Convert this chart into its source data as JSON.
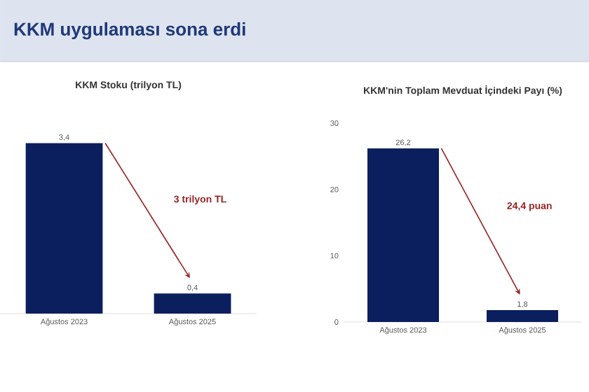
{
  "chart_data": [
    {
      "type": "bar",
      "title": "KKM Stoku (trilyon TL)",
      "categories": [
        "Ağustos 2023",
        "Ağustos 2025"
      ],
      "values": [
        3.4,
        0.4
      ],
      "value_labels": [
        "3,4",
        "0,4"
      ],
      "color": "#0b1f5e",
      "tick_labels": "x",
      "annotations": [
        "KKM uygulaması sona erdi",
        "3 trilyon TL"
      ]
    },
    {
      "type": "bar",
      "title": "KKM'nin Toplam Mevduat İçindeki Payı (%)",
      "categories": [
        "Ağustos 2023",
        "Ağustos 2025"
      ],
      "values": [
        26.2,
        1.8
      ],
      "value_labels": [
        "26,2",
        "1,8"
      ],
      "color": "#0b1f5e",
      "ylim": [
        0,
        30
      ],
      "yticks": [
        0,
        10,
        20,
        30
      ],
      "annotations": [
        "24,4 puan"
      ]
    }
  ]
}
